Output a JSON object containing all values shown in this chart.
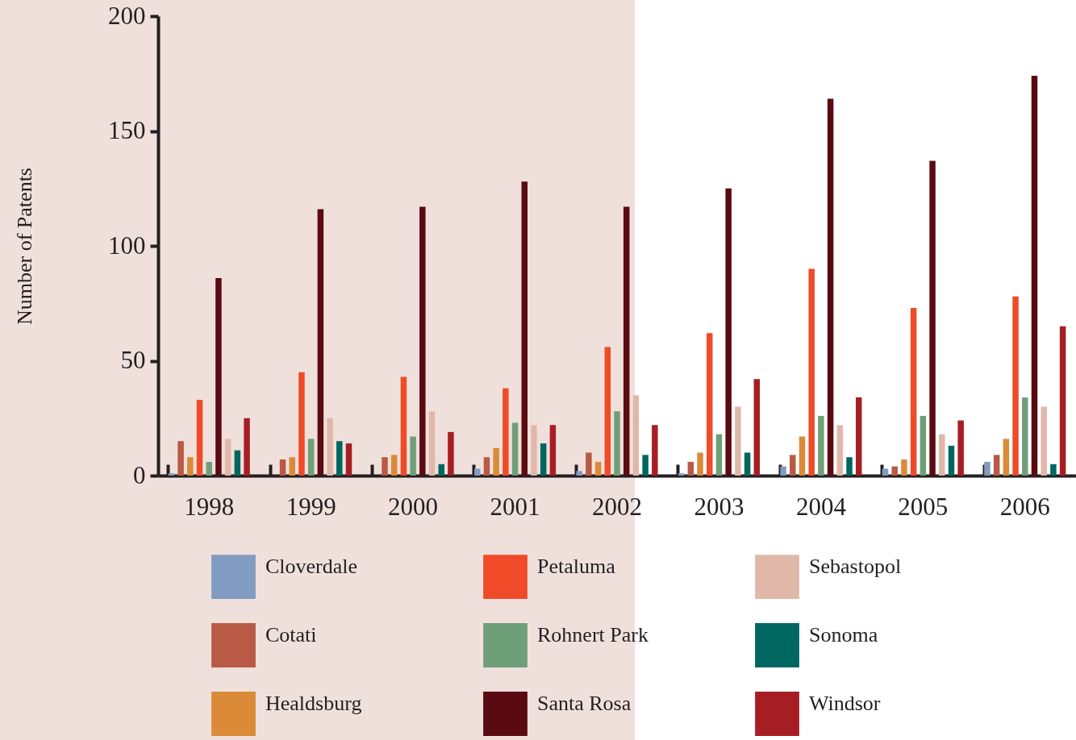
{
  "chart_data": {
    "type": "bar",
    "ylabel": "Number of Patents",
    "categories": [
      "1998",
      "1999",
      "2000",
      "2001",
      "2002",
      "2003",
      "2004",
      "2005",
      "2006"
    ],
    "ylim": [
      0,
      200
    ],
    "yticks": [
      0,
      50,
      100,
      150,
      200
    ],
    "legend": "bottom",
    "series": [
      {
        "name": "Cloverdale",
        "color": "#819bc1",
        "values": [
          1,
          0,
          0,
          3,
          2,
          1,
          4,
          3,
          6
        ]
      },
      {
        "name": "Cotati",
        "color": "#b85a45",
        "values": [
          15,
          7,
          8,
          8,
          10,
          6,
          9,
          4,
          9
        ]
      },
      {
        "name": "Healdsburg",
        "color": "#db8a38",
        "values": [
          8,
          8,
          9,
          12,
          6,
          10,
          17,
          7,
          16
        ]
      },
      {
        "name": "Petaluma",
        "color": "#ef4b29",
        "values": [
          33,
          45,
          43,
          38,
          56,
          62,
          90,
          73,
          78
        ]
      },
      {
        "name": "Rohnert Park",
        "color": "#6f9f78",
        "values": [
          6,
          16,
          17,
          23,
          28,
          18,
          26,
          26,
          34
        ]
      },
      {
        "name": "Santa Rosa",
        "color": "#5a0b11",
        "values": [
          86,
          116,
          117,
          128,
          117,
          125,
          164,
          137,
          174
        ]
      },
      {
        "name": "Sebastopol",
        "color": "#e0b8aa",
        "values": [
          16,
          25,
          28,
          22,
          35,
          30,
          22,
          18,
          30
        ]
      },
      {
        "name": "Sonoma",
        "color": "#006660",
        "values": [
          11,
          15,
          5,
          14,
          9,
          10,
          8,
          13,
          5
        ]
      },
      {
        "name": "Windsor",
        "color": "#a61e24",
        "values": [
          25,
          14,
          19,
          22,
          22,
          42,
          34,
          24,
          65
        ]
      }
    ]
  }
}
